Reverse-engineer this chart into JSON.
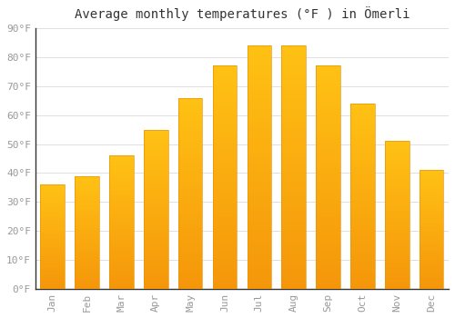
{
  "title": "Average monthly temperatures (°F ) in Ömerli",
  "months": [
    "Jan",
    "Feb",
    "Mar",
    "Apr",
    "May",
    "Jun",
    "Jul",
    "Aug",
    "Sep",
    "Oct",
    "Nov",
    "Dec"
  ],
  "values": [
    36,
    39,
    46,
    55,
    66,
    77,
    84,
    84,
    77,
    64,
    51,
    41
  ],
  "bar_color_top": "#FFC107",
  "bar_color_bottom": "#F5A623",
  "bar_edge_color": "#E8960A",
  "ylim": [
    0,
    90
  ],
  "yticks": [
    0,
    10,
    20,
    30,
    40,
    50,
    60,
    70,
    80,
    90
  ],
  "ytick_labels": [
    "0°F",
    "10°F",
    "20°F",
    "30°F",
    "40°F",
    "50°F",
    "60°F",
    "70°F",
    "80°F",
    "90°F"
  ],
  "background_color": "#FFFFFF",
  "grid_color": "#E0E0E0",
  "title_fontsize": 10,
  "tick_fontsize": 8,
  "axis_color": "#999999",
  "spine_color": "#333333"
}
